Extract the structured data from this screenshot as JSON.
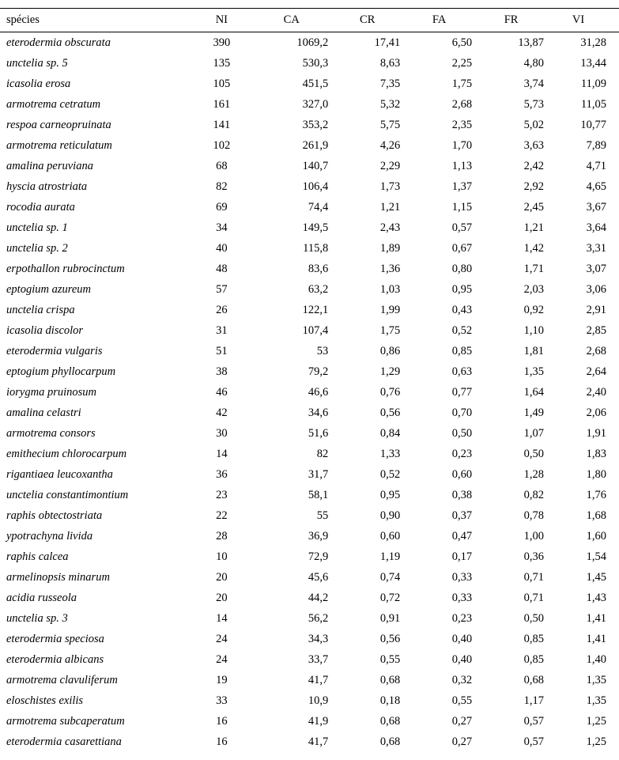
{
  "table": {
    "headers": {
      "species": "spécies",
      "ni": "NI",
      "ca": "CA",
      "cr": "CR",
      "fa": "FA",
      "fr": "FR",
      "vi": "VI"
    },
    "rows": [
      {
        "sp": "eterodermia obscurata",
        "ni": "390",
        "ca": "1069,2",
        "cr": "17,41",
        "fa": "6,50",
        "fr": "13,87",
        "vi": "31,28"
      },
      {
        "sp": "unctelia sp. 5",
        "ni": "135",
        "ca": "530,3",
        "cr": "8,63",
        "fa": "2,25",
        "fr": "4,80",
        "vi": "13,44"
      },
      {
        "sp": "icasolia erosa",
        "ni": "105",
        "ca": "451,5",
        "cr": "7,35",
        "fa": "1,75",
        "fr": "3,74",
        "vi": "11,09"
      },
      {
        "sp": "armotrema cetratum",
        "ni": "161",
        "ca": "327,0",
        "cr": "5,32",
        "fa": "2,68",
        "fr": "5,73",
        "vi": "11,05"
      },
      {
        "sp": "respoa carneopruinata",
        "ni": "141",
        "ca": "353,2",
        "cr": "5,75",
        "fa": "2,35",
        "fr": "5,02",
        "vi": "10,77"
      },
      {
        "sp": "armotrema reticulatum",
        "ni": "102",
        "ca": "261,9",
        "cr": "4,26",
        "fa": "1,70",
        "fr": "3,63",
        "vi": "7,89"
      },
      {
        "sp": "amalina peruviana",
        "ni": "68",
        "ca": "140,7",
        "cr": "2,29",
        "fa": "1,13",
        "fr": "2,42",
        "vi": "4,71"
      },
      {
        "sp": "hyscia atrostriata",
        "ni": "82",
        "ca": "106,4",
        "cr": "1,73",
        "fa": "1,37",
        "fr": "2,92",
        "vi": "4,65"
      },
      {
        "sp": "rocodia aurata",
        "ni": "69",
        "ca": "74,4",
        "cr": "1,21",
        "fa": "1,15",
        "fr": "2,45",
        "vi": "3,67"
      },
      {
        "sp": "unctelia sp. 1",
        "ni": "34",
        "ca": "149,5",
        "cr": "2,43",
        "fa": "0,57",
        "fr": "1,21",
        "vi": "3,64"
      },
      {
        "sp": "unctelia sp. 2",
        "ni": "40",
        "ca": "115,8",
        "cr": "1,89",
        "fa": "0,67",
        "fr": "1,42",
        "vi": "3,31"
      },
      {
        "sp": "erpothallon rubrocinctum",
        "ni": "48",
        "ca": "83,6",
        "cr": "1,36",
        "fa": "0,80",
        "fr": "1,71",
        "vi": "3,07"
      },
      {
        "sp": "eptogium azureum",
        "ni": "57",
        "ca": "63,2",
        "cr": "1,03",
        "fa": "0,95",
        "fr": "2,03",
        "vi": "3,06"
      },
      {
        "sp": "unctelia crispa",
        "ni": "26",
        "ca": "122,1",
        "cr": "1,99",
        "fa": "0,43",
        "fr": "0,92",
        "vi": "2,91"
      },
      {
        "sp": "icasolia discolor",
        "ni": "31",
        "ca": "107,4",
        "cr": "1,75",
        "fa": "0,52",
        "fr": "1,10",
        "vi": "2,85"
      },
      {
        "sp": "eterodermia vulgaris",
        "ni": "51",
        "ca": "53",
        "cr": "0,86",
        "fa": "0,85",
        "fr": "1,81",
        "vi": "2,68"
      },
      {
        "sp": "eptogium phyllocarpum",
        "ni": "38",
        "ca": "79,2",
        "cr": "1,29",
        "fa": "0,63",
        "fr": "1,35",
        "vi": "2,64"
      },
      {
        "sp": "iorygma pruinosum",
        "ni": "46",
        "ca": "46,6",
        "cr": "0,76",
        "fa": "0,77",
        "fr": "1,64",
        "vi": "2,40"
      },
      {
        "sp": "amalina celastri",
        "ni": "42",
        "ca": "34,6",
        "cr": "0,56",
        "fa": "0,70",
        "fr": "1,49",
        "vi": "2,06"
      },
      {
        "sp": "armotrema consors",
        "ni": "30",
        "ca": "51,6",
        "cr": "0,84",
        "fa": "0,50",
        "fr": "1,07",
        "vi": "1,91"
      },
      {
        "sp": "emithecium chlorocarpum",
        "ni": "14",
        "ca": "82",
        "cr": "1,33",
        "fa": "0,23",
        "fr": "0,50",
        "vi": "1,83"
      },
      {
        "sp": "rigantiaea leucoxantha",
        "ni": "36",
        "ca": "31,7",
        "cr": "0,52",
        "fa": "0,60",
        "fr": "1,28",
        "vi": "1,80"
      },
      {
        "sp": "unctelia constantimontium",
        "ni": "23",
        "ca": "58,1",
        "cr": "0,95",
        "fa": "0,38",
        "fr": "0,82",
        "vi": "1,76"
      },
      {
        "sp": "raphis obtectostriata",
        "ni": "22",
        "ca": "55",
        "cr": "0,90",
        "fa": "0,37",
        "fr": "0,78",
        "vi": "1,68"
      },
      {
        "sp": "ypotrachyna livida",
        "ni": "28",
        "ca": "36,9",
        "cr": "0,60",
        "fa": "0,47",
        "fr": "1,00",
        "vi": "1,60"
      },
      {
        "sp": "raphis calcea",
        "ni": "10",
        "ca": "72,9",
        "cr": "1,19",
        "fa": "0,17",
        "fr": "0,36",
        "vi": "1,54"
      },
      {
        "sp": "armelinopsis minarum",
        "ni": "20",
        "ca": "45,6",
        "cr": "0,74",
        "fa": "0,33",
        "fr": "0,71",
        "vi": "1,45"
      },
      {
        "sp": "acidia russeola",
        "ni": "20",
        "ca": "44,2",
        "cr": "0,72",
        "fa": "0,33",
        "fr": "0,71",
        "vi": "1,43"
      },
      {
        "sp": "unctelia sp. 3",
        "ni": "14",
        "ca": "56,2",
        "cr": "0,91",
        "fa": "0,23",
        "fr": "0,50",
        "vi": "1,41"
      },
      {
        "sp": "eterodermia speciosa",
        "ni": "24",
        "ca": "34,3",
        "cr": "0,56",
        "fa": "0,40",
        "fr": "0,85",
        "vi": "1,41"
      },
      {
        "sp": "eterodermia albicans",
        "ni": "24",
        "ca": "33,7",
        "cr": "0,55",
        "fa": "0,40",
        "fr": "0,85",
        "vi": "1,40"
      },
      {
        "sp": "armotrema clavuliferum",
        "ni": "19",
        "ca": "41,7",
        "cr": "0,68",
        "fa": "0,32",
        "fr": "0,68",
        "vi": "1,35"
      },
      {
        "sp": "eloschistes exilis",
        "ni": "33",
        "ca": "10,9",
        "cr": "0,18",
        "fa": "0,55",
        "fr": "1,17",
        "vi": "1,35"
      },
      {
        "sp": "armotrema subcaperatum",
        "ni": "16",
        "ca": "41,9",
        "cr": "0,68",
        "fa": "0,27",
        "fr": "0,57",
        "vi": "1,25"
      },
      {
        "sp": "eterodermia casarettiana",
        "ni": "16",
        "ca": "41,7",
        "cr": "0,68",
        "fa": "0,27",
        "fr": "0,57",
        "vi": "1,25"
      }
    ]
  }
}
